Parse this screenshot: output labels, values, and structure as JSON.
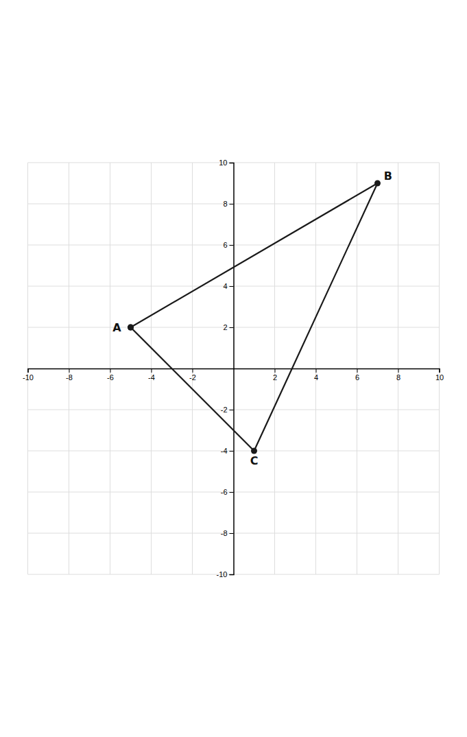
{
  "chart_data": {
    "type": "line",
    "x": [
      -5,
      7,
      1,
      -5
    ],
    "values": [
      2,
      9,
      -4,
      2
    ],
    "color": "#1a1a1a",
    "marker": "circle",
    "annotations": [
      {
        "text": "A",
        "x": -5,
        "y": 2
      },
      {
        "text": "B",
        "x": 7,
        "y": 9
      },
      {
        "text": "C",
        "x": 1,
        "y": -4
      }
    ],
    "xlim": [
      -10,
      10
    ],
    "ylim": [
      -10,
      10
    ],
    "xticks": [
      -10,
      -8,
      -6,
      -4,
      -2,
      2,
      4,
      6,
      8,
      10
    ],
    "yticks": [
      -10,
      -8,
      -6,
      -4,
      -2,
      2,
      4,
      6,
      8,
      10
    ],
    "grid": true
  }
}
